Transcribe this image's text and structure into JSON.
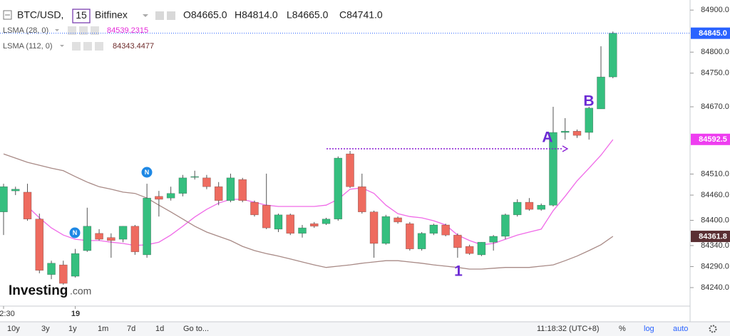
{
  "header": {
    "symbol": "BTC/USD,",
    "interval": "15",
    "exchange": "Bitfinex",
    "ohlc": [
      "O84665.0",
      "H84814.0",
      "L84665.0",
      "C84741.0"
    ]
  },
  "chart_data": {
    "type": "candlestick",
    "categories": [
      "2:30",
      null,
      null,
      null,
      null,
      null,
      "19",
      null,
      null,
      null,
      null,
      null,
      null,
      null,
      null,
      null,
      null,
      null,
      null,
      null,
      null,
      null,
      null,
      null,
      null,
      null,
      null,
      null,
      null,
      null,
      null,
      null,
      null,
      null,
      null,
      null,
      null,
      null,
      null,
      null,
      null,
      null,
      null,
      null,
      null,
      null,
      null,
      null,
      null,
      null,
      null,
      null
    ],
    "open": [
      84420,
      84470,
      84467,
      84403,
      84271,
      84294,
      84267,
      84328,
      84369,
      84359,
      84355,
      84386,
      84318,
      84457,
      84453,
      84464,
      84504,
      84501,
      84480,
      84447,
      84497,
      84443,
      84436,
      84379,
      84413,
      84369,
      84392,
      84392,
      84403,
      84558,
      84480,
      84420,
      84345,
      84406,
      84392,
      84332,
      84369,
      84389,
      84365,
      84338,
      84318,
      84348,
      84362,
      84413,
      84443,
      84426,
      84436,
      84609,
      84612,
      84609,
      84665,
      84741
    ],
    "high": [
      84487,
      84480,
      84487,
      84416,
      84304,
      84304,
      84332,
      84430,
      84379,
      84369,
      84386,
      84389,
      84487,
      84470,
      84480,
      84508,
      84518,
      84508,
      84491,
      84511,
      84501,
      84447,
      84511,
      84416,
      84416,
      84389,
      84396,
      84406,
      84552,
      84565,
      84511,
      84423,
      84413,
      84409,
      84396,
      84372,
      84392,
      84392,
      84369,
      84342,
      84348,
      84365,
      84416,
      84450,
      84453,
      84440,
      84670,
      84643,
      84616,
      84670,
      84814,
      84849
    ],
    "low": [
      84365,
      84460,
      84399,
      84274,
      84260,
      84247,
      84264,
      84325,
      84352,
      84311,
      84348,
      84318,
      84311,
      84409,
      84447,
      84457,
      84497,
      84474,
      84436,
      84443,
      84443,
      84409,
      84379,
      84372,
      84365,
      84359,
      84382,
      84389,
      84399,
      84477,
      84416,
      84311,
      84342,
      84392,
      84328,
      84328,
      84365,
      84362,
      84311,
      84318,
      84315,
      84328,
      84355,
      84409,
      84423,
      84423,
      84433,
      84592,
      84596,
      84592,
      84665,
      84738
    ],
    "close": [
      84480,
      84474,
      84403,
      84281,
      84298,
      84250,
      84321,
      84386,
      84355,
      84352,
      84386,
      84325,
      84453,
      84450,
      84464,
      84501,
      84504,
      84480,
      84447,
      84501,
      84447,
      84413,
      84382,
      84413,
      84369,
      84382,
      84386,
      84403,
      84548,
      84480,
      84420,
      84345,
      84409,
      84396,
      84332,
      84369,
      84389,
      84365,
      84335,
      84321,
      84348,
      84362,
      84413,
      84443,
      84426,
      84436,
      84609,
      84612,
      84602,
      84667,
      84741,
      84845
    ],
    "up_color": "#35bf7f",
    "down_color": "#ee6b5f",
    "wick_color": "#555555",
    "series": [
      {
        "name": "LSMA (28, 0)",
        "color": "#f06ae8",
        "last_value": "84539.2315",
        "values": [
          null,
          null,
          84433,
          84406,
          84382,
          84365,
          84355,
          84352,
          84352,
          84348,
          84345,
          84340,
          84342,
          84348,
          84365,
          84386,
          84408,
          84426,
          84441,
          84450,
          84450,
          84443,
          84436,
          84433,
          84433,
          84433,
          84433,
          84436,
          84450,
          84474,
          84477,
          84464,
          84436,
          84416,
          84409,
          84406,
          84399,
          84389,
          84365,
          84352,
          84342,
          84345,
          84355,
          84365,
          84372,
          84379,
          84423,
          84457,
          84494,
          84524,
          84555,
          84592
        ]
      },
      {
        "name": "LSMA (112, 0)",
        "color": "#a88a86",
        "last_value": "84343.4477",
        "values": [
          84558,
          84548,
          84538,
          84531,
          84524,
          84518,
          84504,
          84491,
          84480,
          84474,
          84467,
          84464,
          84453,
          84436,
          84420,
          84403,
          84386,
          84372,
          84362,
          84352,
          84338,
          84328,
          84321,
          84315,
          84308,
          84301,
          84294,
          84288,
          84291,
          84294,
          84298,
          84301,
          84304,
          84304,
          84301,
          84298,
          84294,
          84291,
          84288,
          84284,
          84284,
          84286,
          84288,
          84288,
          84288,
          84291,
          84294,
          84304,
          84315,
          84328,
          84342,
          84362
        ]
      }
    ],
    "ylim": [
      84196,
      84924
    ],
    "yticks": [
      {
        "value": 84900,
        "label": "84900.0"
      },
      {
        "value": 84800,
        "label": "84800.0"
      },
      {
        "value": 84750,
        "label": "84750.0"
      },
      {
        "value": 84670,
        "label": "84670.0"
      },
      {
        "value": 84510,
        "label": "84510.0"
      },
      {
        "value": 84460,
        "label": "84460.0"
      },
      {
        "value": 84400,
        "label": "84400.0"
      },
      {
        "value": 84340,
        "label": "84340.0"
      },
      {
        "value": 84290,
        "label": "84290.0"
      },
      {
        "value": 84240,
        "label": "84240.0"
      }
    ],
    "price_tags": [
      {
        "value": 84845,
        "label": "84845.0",
        "color": "#2962ff"
      },
      {
        "value": 84592.5,
        "label": "84592.5",
        "color": "#ee3df0"
      },
      {
        "value": 84361.8,
        "label": "84361.8",
        "color": "#5a2f33"
      }
    ],
    "annotations": [
      "A",
      "B",
      "1"
    ],
    "news_markers": [
      "N",
      "N"
    ],
    "time_label": "11:18:32 (UTC+8)"
  },
  "logo": {
    "brand": "Investing",
    "suffix": ".com"
  },
  "toolbar": {
    "ranges": [
      "10y",
      "3y",
      "1y",
      "1m",
      "7d",
      "1d"
    ],
    "goto": "Go to...",
    "options": [
      "%",
      "log",
      "auto"
    ]
  }
}
